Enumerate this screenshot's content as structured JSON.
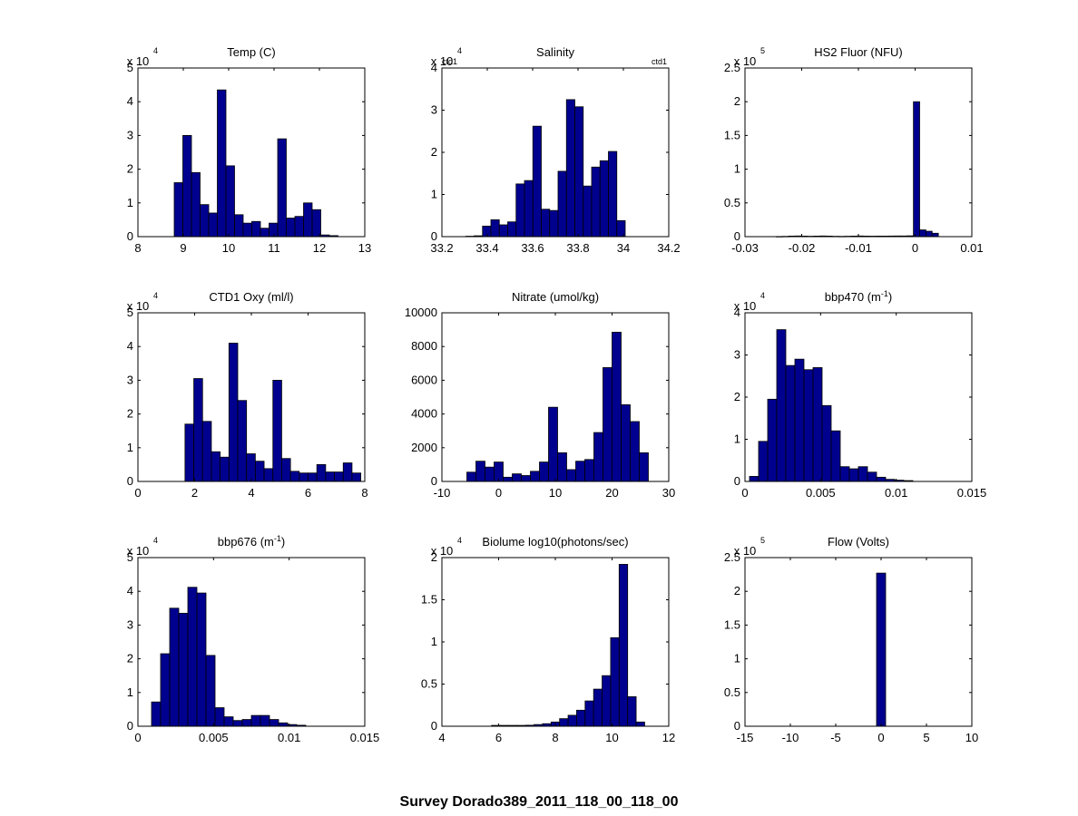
{
  "figure_title": "Survey Dorado389_2011_118_00_118_00",
  "bar_color": "#00008f",
  "edge_color": "#000000",
  "chart_data": [
    {
      "type": "bar",
      "title": "Temp (C)",
      "xlim": [
        8,
        13
      ],
      "ylim": [
        0,
        5
      ],
      "exponent": "4",
      "x_ticks": [
        "8",
        "9",
        "10",
        "11",
        "12",
        "13"
      ],
      "y_ticks": [
        "0",
        "1",
        "2",
        "3",
        "4",
        "5"
      ],
      "bins": [
        {
          "x0": 8.8,
          "x1": 8.99,
          "y": 1.6
        },
        {
          "x0": 8.99,
          "x1": 9.18,
          "y": 3.0
        },
        {
          "x0": 9.18,
          "x1": 9.37,
          "y": 1.9
        },
        {
          "x0": 9.37,
          "x1": 9.56,
          "y": 0.95
        },
        {
          "x0": 9.56,
          "x1": 9.75,
          "y": 0.7
        },
        {
          "x0": 9.75,
          "x1": 9.94,
          "y": 4.35
        },
        {
          "x0": 9.94,
          "x1": 10.13,
          "y": 2.1
        },
        {
          "x0": 10.13,
          "x1": 10.32,
          "y": 0.65
        },
        {
          "x0": 10.32,
          "x1": 10.51,
          "y": 0.4
        },
        {
          "x0": 10.51,
          "x1": 10.7,
          "y": 0.45
        },
        {
          "x0": 10.7,
          "x1": 10.89,
          "y": 0.25
        },
        {
          "x0": 10.89,
          "x1": 11.08,
          "y": 0.4
        },
        {
          "x0": 11.08,
          "x1": 11.27,
          "y": 2.9
        },
        {
          "x0": 11.27,
          "x1": 11.46,
          "y": 0.55
        },
        {
          "x0": 11.46,
          "x1": 11.65,
          "y": 0.6
        },
        {
          "x0": 11.65,
          "x1": 11.84,
          "y": 1.0
        },
        {
          "x0": 11.84,
          "x1": 12.03,
          "y": 0.8
        },
        {
          "x0": 12.03,
          "x1": 12.22,
          "y": 0.05
        },
        {
          "x0": 12.22,
          "x1": 12.41,
          "y": 0.03
        }
      ]
    },
    {
      "type": "bar",
      "title": "Salinity",
      "xlim": [
        33.2,
        34.2
      ],
      "ylim": [
        0,
        4
      ],
      "exponent": "4",
      "x_ticks": [
        "33.2",
        "33.4",
        "33.6",
        "33.8",
        "34",
        "34.2"
      ],
      "y_ticks": [
        "0",
        "1",
        "2",
        "3",
        "4"
      ],
      "annotations": [
        "ctd1",
        "ctd1"
      ],
      "bins": [
        {
          "x0": 33.305,
          "x1": 33.342,
          "y": 0.01
        },
        {
          "x0": 33.342,
          "x1": 33.379,
          "y": 0.02
        },
        {
          "x0": 33.379,
          "x1": 33.416,
          "y": 0.25
        },
        {
          "x0": 33.416,
          "x1": 33.453,
          "y": 0.4
        },
        {
          "x0": 33.453,
          "x1": 33.49,
          "y": 0.28
        },
        {
          "x0": 33.49,
          "x1": 33.527,
          "y": 0.35
        },
        {
          "x0": 33.527,
          "x1": 33.564,
          "y": 1.25
        },
        {
          "x0": 33.564,
          "x1": 33.601,
          "y": 1.33
        },
        {
          "x0": 33.601,
          "x1": 33.638,
          "y": 2.62
        },
        {
          "x0": 33.638,
          "x1": 33.675,
          "y": 0.65
        },
        {
          "x0": 33.675,
          "x1": 33.712,
          "y": 0.62
        },
        {
          "x0": 33.712,
          "x1": 33.749,
          "y": 1.55
        },
        {
          "x0": 33.749,
          "x1": 33.786,
          "y": 3.25
        },
        {
          "x0": 33.786,
          "x1": 33.823,
          "y": 3.08
        },
        {
          "x0": 33.823,
          "x1": 33.86,
          "y": 1.2
        },
        {
          "x0": 33.86,
          "x1": 33.897,
          "y": 1.65
        },
        {
          "x0": 33.897,
          "x1": 33.934,
          "y": 1.8
        },
        {
          "x0": 33.934,
          "x1": 33.971,
          "y": 2.02
        },
        {
          "x0": 33.971,
          "x1": 34.008,
          "y": 0.38
        }
      ]
    },
    {
      "type": "bar",
      "title": "HS2 Fluor (NFU)",
      "xlim": [
        -0.03,
        0.01
      ],
      "ylim": [
        0,
        2.5
      ],
      "exponent": "5",
      "x_ticks": [
        "-0.03",
        "-0.02",
        "-0.01",
        "0",
        "0.01"
      ],
      "y_ticks": [
        "0",
        "0.5",
        "1",
        "1.5",
        "2",
        "2.5"
      ],
      "bins": [
        {
          "x0": -0.0245,
          "x1": -0.0234,
          "y": 0.002
        },
        {
          "x0": -0.0234,
          "x1": -0.0223,
          "y": 0.004
        },
        {
          "x0": -0.0223,
          "x1": -0.0212,
          "y": 0.008
        },
        {
          "x0": -0.0212,
          "x1": -0.0201,
          "y": 0.01
        },
        {
          "x0": -0.0201,
          "x1": -0.019,
          "y": 0.008
        },
        {
          "x0": -0.019,
          "x1": -0.0179,
          "y": 0.006
        },
        {
          "x0": -0.0179,
          "x1": -0.0168,
          "y": 0.008
        },
        {
          "x0": -0.0168,
          "x1": -0.0157,
          "y": 0.01
        },
        {
          "x0": -0.0157,
          "x1": -0.0146,
          "y": 0.008
        },
        {
          "x0": -0.0146,
          "x1": -0.0135,
          "y": 0.005
        },
        {
          "x0": -0.0135,
          "x1": -0.0124,
          "y": 0.004
        },
        {
          "x0": -0.0124,
          "x1": -0.0113,
          "y": 0.006
        },
        {
          "x0": -0.0113,
          "x1": -0.0102,
          "y": 0.008
        },
        {
          "x0": -0.0102,
          "x1": -0.0091,
          "y": 0.01
        },
        {
          "x0": -0.0091,
          "x1": -0.008,
          "y": 0.008
        },
        {
          "x0": -0.008,
          "x1": -0.0069,
          "y": 0.007
        },
        {
          "x0": -0.0069,
          "x1": -0.0058,
          "y": 0.008
        },
        {
          "x0": -0.0058,
          "x1": -0.0047,
          "y": 0.008
        },
        {
          "x0": -0.0047,
          "x1": -0.0036,
          "y": 0.009
        },
        {
          "x0": -0.0036,
          "x1": -0.0025,
          "y": 0.01
        },
        {
          "x0": -0.0025,
          "x1": -0.0014,
          "y": 0.01
        },
        {
          "x0": -0.0014,
          "x1": -0.0003,
          "y": 0.012
        },
        {
          "x0": -0.0003,
          "x1": 0.0008,
          "y": 2.0
        },
        {
          "x0": 0.0008,
          "x1": 0.0019,
          "y": 0.1
        },
        {
          "x0": 0.0019,
          "x1": 0.003,
          "y": 0.08
        },
        {
          "x0": 0.003,
          "x1": 0.0041,
          "y": 0.05
        }
      ]
    },
    {
      "type": "bar",
      "title": "CTD1 Oxy (ml/l)",
      "xlim": [
        0,
        8
      ],
      "ylim": [
        0,
        5
      ],
      "exponent": "4",
      "x_ticks": [
        "0",
        "2",
        "4",
        "6",
        "8"
      ],
      "y_ticks": [
        "0",
        "1",
        "2",
        "3",
        "4",
        "5"
      ],
      "bins": [
        {
          "x0": 1.66,
          "x1": 1.97,
          "y": 1.7
        },
        {
          "x0": 1.97,
          "x1": 2.28,
          "y": 3.05
        },
        {
          "x0": 2.28,
          "x1": 2.59,
          "y": 1.78
        },
        {
          "x0": 2.59,
          "x1": 2.9,
          "y": 0.88
        },
        {
          "x0": 2.9,
          "x1": 3.21,
          "y": 0.72
        },
        {
          "x0": 3.21,
          "x1": 3.52,
          "y": 4.1
        },
        {
          "x0": 3.52,
          "x1": 3.83,
          "y": 2.4
        },
        {
          "x0": 3.83,
          "x1": 4.14,
          "y": 0.82
        },
        {
          "x0": 4.14,
          "x1": 4.45,
          "y": 0.6
        },
        {
          "x0": 4.45,
          "x1": 4.76,
          "y": 0.38
        },
        {
          "x0": 4.76,
          "x1": 5.07,
          "y": 3.0
        },
        {
          "x0": 5.07,
          "x1": 5.38,
          "y": 0.68
        },
        {
          "x0": 5.38,
          "x1": 5.69,
          "y": 0.3
        },
        {
          "x0": 5.69,
          "x1": 6.0,
          "y": 0.25
        },
        {
          "x0": 6.0,
          "x1": 6.31,
          "y": 0.25
        },
        {
          "x0": 6.31,
          "x1": 6.62,
          "y": 0.5
        },
        {
          "x0": 6.62,
          "x1": 6.93,
          "y": 0.28
        },
        {
          "x0": 6.93,
          "x1": 7.24,
          "y": 0.28
        },
        {
          "x0": 7.24,
          "x1": 7.55,
          "y": 0.55
        },
        {
          "x0": 7.55,
          "x1": 7.86,
          "y": 0.25
        }
      ]
    },
    {
      "type": "bar",
      "title": "Nitrate (umol/kg)",
      "xlim": [
        -10,
        30
      ],
      "ylim": [
        0,
        10000
      ],
      "exponent": "",
      "x_ticks": [
        "-10",
        "0",
        "10",
        "20",
        "30"
      ],
      "y_ticks": [
        "0",
        "2000",
        "4000",
        "6000",
        "8000",
        "10000"
      ],
      "bins": [
        {
          "x0": -5.6,
          "x1": -4.0,
          "y": 550
        },
        {
          "x0": -4.0,
          "x1": -2.4,
          "y": 1200
        },
        {
          "x0": -2.4,
          "x1": -0.8,
          "y": 850
        },
        {
          "x0": -0.8,
          "x1": 0.8,
          "y": 1150
        },
        {
          "x0": 0.8,
          "x1": 2.4,
          "y": 250
        },
        {
          "x0": 2.4,
          "x1": 4.0,
          "y": 450
        },
        {
          "x0": 4.0,
          "x1": 5.6,
          "y": 350
        },
        {
          "x0": 5.6,
          "x1": 7.2,
          "y": 600
        },
        {
          "x0": 7.2,
          "x1": 8.8,
          "y": 1150
        },
        {
          "x0": 8.8,
          "x1": 10.4,
          "y": 4400
        },
        {
          "x0": 10.4,
          "x1": 12.0,
          "y": 1700
        },
        {
          "x0": 12.0,
          "x1": 13.6,
          "y": 700
        },
        {
          "x0": 13.6,
          "x1": 15.2,
          "y": 1200
        },
        {
          "x0": 15.2,
          "x1": 16.8,
          "y": 1300
        },
        {
          "x0": 16.8,
          "x1": 18.4,
          "y": 2900
        },
        {
          "x0": 18.4,
          "x1": 20.0,
          "y": 6750
        },
        {
          "x0": 20.0,
          "x1": 21.6,
          "y": 8850
        },
        {
          "x0": 21.6,
          "x1": 23.2,
          "y": 4550
        },
        {
          "x0": 23.2,
          "x1": 24.8,
          "y": 3550
        },
        {
          "x0": 24.8,
          "x1": 26.4,
          "y": 1700
        }
      ]
    },
    {
      "type": "bar",
      "title": "bbp470 (m",
      "title_sup": "-1",
      "title_end": ")",
      "xlim": [
        0,
        0.015
      ],
      "ylim": [
        0,
        4
      ],
      "exponent": "4",
      "x_ticks": [
        "0",
        "0.005",
        "0.01",
        "0.015"
      ],
      "y_ticks": [
        "0",
        "1",
        "2",
        "3",
        "4"
      ],
      "bins": [
        {
          "x0": 0.0003,
          "x1": 0.0009,
          "y": 0.12
        },
        {
          "x0": 0.0009,
          "x1": 0.0015,
          "y": 0.95
        },
        {
          "x0": 0.0015,
          "x1": 0.0021,
          "y": 1.95
        },
        {
          "x0": 0.0021,
          "x1": 0.0027,
          "y": 3.6
        },
        {
          "x0": 0.0027,
          "x1": 0.0033,
          "y": 2.75
        },
        {
          "x0": 0.0033,
          "x1": 0.0039,
          "y": 2.9
        },
        {
          "x0": 0.0039,
          "x1": 0.0045,
          "y": 2.65
        },
        {
          "x0": 0.0045,
          "x1": 0.0051,
          "y": 2.7
        },
        {
          "x0": 0.0051,
          "x1": 0.0057,
          "y": 1.8
        },
        {
          "x0": 0.0057,
          "x1": 0.0063,
          "y": 1.2
        },
        {
          "x0": 0.0063,
          "x1": 0.0069,
          "y": 0.35
        },
        {
          "x0": 0.0069,
          "x1": 0.0075,
          "y": 0.3
        },
        {
          "x0": 0.0075,
          "x1": 0.0081,
          "y": 0.35
        },
        {
          "x0": 0.0081,
          "x1": 0.0087,
          "y": 0.22
        },
        {
          "x0": 0.0087,
          "x1": 0.0093,
          "y": 0.1
        },
        {
          "x0": 0.0093,
          "x1": 0.0099,
          "y": 0.05
        },
        {
          "x0": 0.0099,
          "x1": 0.0105,
          "y": 0.03
        },
        {
          "x0": 0.0105,
          "x1": 0.0111,
          "y": 0.02
        }
      ]
    },
    {
      "type": "bar",
      "title": "bbp676 (m",
      "title_sup": "-1",
      "title_end": ")",
      "xlim": [
        0,
        0.015
      ],
      "ylim": [
        0,
        5
      ],
      "exponent": "4",
      "x_ticks": [
        "0",
        "0.005",
        "0.01",
        "0.015"
      ],
      "y_ticks": [
        "0",
        "1",
        "2",
        "3",
        "4",
        "5"
      ],
      "bins": [
        {
          "x0": 0.0009,
          "x1": 0.0015,
          "y": 0.72
        },
        {
          "x0": 0.0015,
          "x1": 0.0021,
          "y": 2.15
        },
        {
          "x0": 0.0021,
          "x1": 0.0027,
          "y": 3.5
        },
        {
          "x0": 0.0027,
          "x1": 0.0033,
          "y": 3.35
        },
        {
          "x0": 0.0033,
          "x1": 0.0039,
          "y": 4.12
        },
        {
          "x0": 0.0039,
          "x1": 0.0045,
          "y": 3.95
        },
        {
          "x0": 0.0045,
          "x1": 0.0051,
          "y": 2.1
        },
        {
          "x0": 0.0051,
          "x1": 0.0057,
          "y": 0.55
        },
        {
          "x0": 0.0057,
          "x1": 0.0063,
          "y": 0.28
        },
        {
          "x0": 0.0063,
          "x1": 0.0069,
          "y": 0.17
        },
        {
          "x0": 0.0069,
          "x1": 0.0075,
          "y": 0.2
        },
        {
          "x0": 0.0075,
          "x1": 0.0081,
          "y": 0.32
        },
        {
          "x0": 0.0081,
          "x1": 0.0087,
          "y": 0.32
        },
        {
          "x0": 0.0087,
          "x1": 0.0093,
          "y": 0.2
        },
        {
          "x0": 0.0093,
          "x1": 0.0099,
          "y": 0.1
        },
        {
          "x0": 0.0099,
          "x1": 0.0105,
          "y": 0.05
        },
        {
          "x0": 0.0105,
          "x1": 0.0111,
          "y": 0.03
        }
      ]
    },
    {
      "type": "bar",
      "title": "Biolume log10(photons/sec)",
      "xlim": [
        4,
        12
      ],
      "ylim": [
        0,
        2
      ],
      "exponent": "4",
      "x_ticks": [
        "4",
        "6",
        "8",
        "10",
        "12"
      ],
      "y_ticks": [
        "0",
        "0.5",
        "1",
        "1.5",
        "2"
      ],
      "bins": [
        {
          "x0": 5.75,
          "x1": 6.05,
          "y": 0.01
        },
        {
          "x0": 6.05,
          "x1": 6.35,
          "y": 0.01
        },
        {
          "x0": 6.35,
          "x1": 6.65,
          "y": 0.01
        },
        {
          "x0": 6.65,
          "x1": 6.95,
          "y": 0.01
        },
        {
          "x0": 6.95,
          "x1": 7.25,
          "y": 0.012
        },
        {
          "x0": 7.25,
          "x1": 7.55,
          "y": 0.02
        },
        {
          "x0": 7.55,
          "x1": 7.85,
          "y": 0.03
        },
        {
          "x0": 7.85,
          "x1": 8.15,
          "y": 0.05
        },
        {
          "x0": 8.15,
          "x1": 8.45,
          "y": 0.09
        },
        {
          "x0": 8.45,
          "x1": 8.75,
          "y": 0.13
        },
        {
          "x0": 8.75,
          "x1": 9.05,
          "y": 0.19
        },
        {
          "x0": 9.05,
          "x1": 9.35,
          "y": 0.3
        },
        {
          "x0": 9.35,
          "x1": 9.65,
          "y": 0.44
        },
        {
          "x0": 9.65,
          "x1": 9.95,
          "y": 0.6
        },
        {
          "x0": 9.95,
          "x1": 10.25,
          "y": 1.05
        },
        {
          "x0": 10.25,
          "x1": 10.55,
          "y": 1.92
        },
        {
          "x0": 10.55,
          "x1": 10.85,
          "y": 0.35
        },
        {
          "x0": 10.85,
          "x1": 11.15,
          "y": 0.05
        }
      ]
    },
    {
      "type": "bar",
      "title": "Flow (Volts)",
      "xlim": [
        -15,
        10
      ],
      "ylim": [
        0,
        2.5
      ],
      "exponent": "5",
      "x_ticks": [
        "-15",
        "-10",
        "-5",
        "0",
        "5",
        "10"
      ],
      "y_ticks": [
        "0",
        "0.5",
        "1",
        "1.5",
        "2",
        "2.5"
      ],
      "bins": [
        {
          "x0": -0.5,
          "x1": 0.5,
          "y": 2.27
        }
      ]
    }
  ]
}
